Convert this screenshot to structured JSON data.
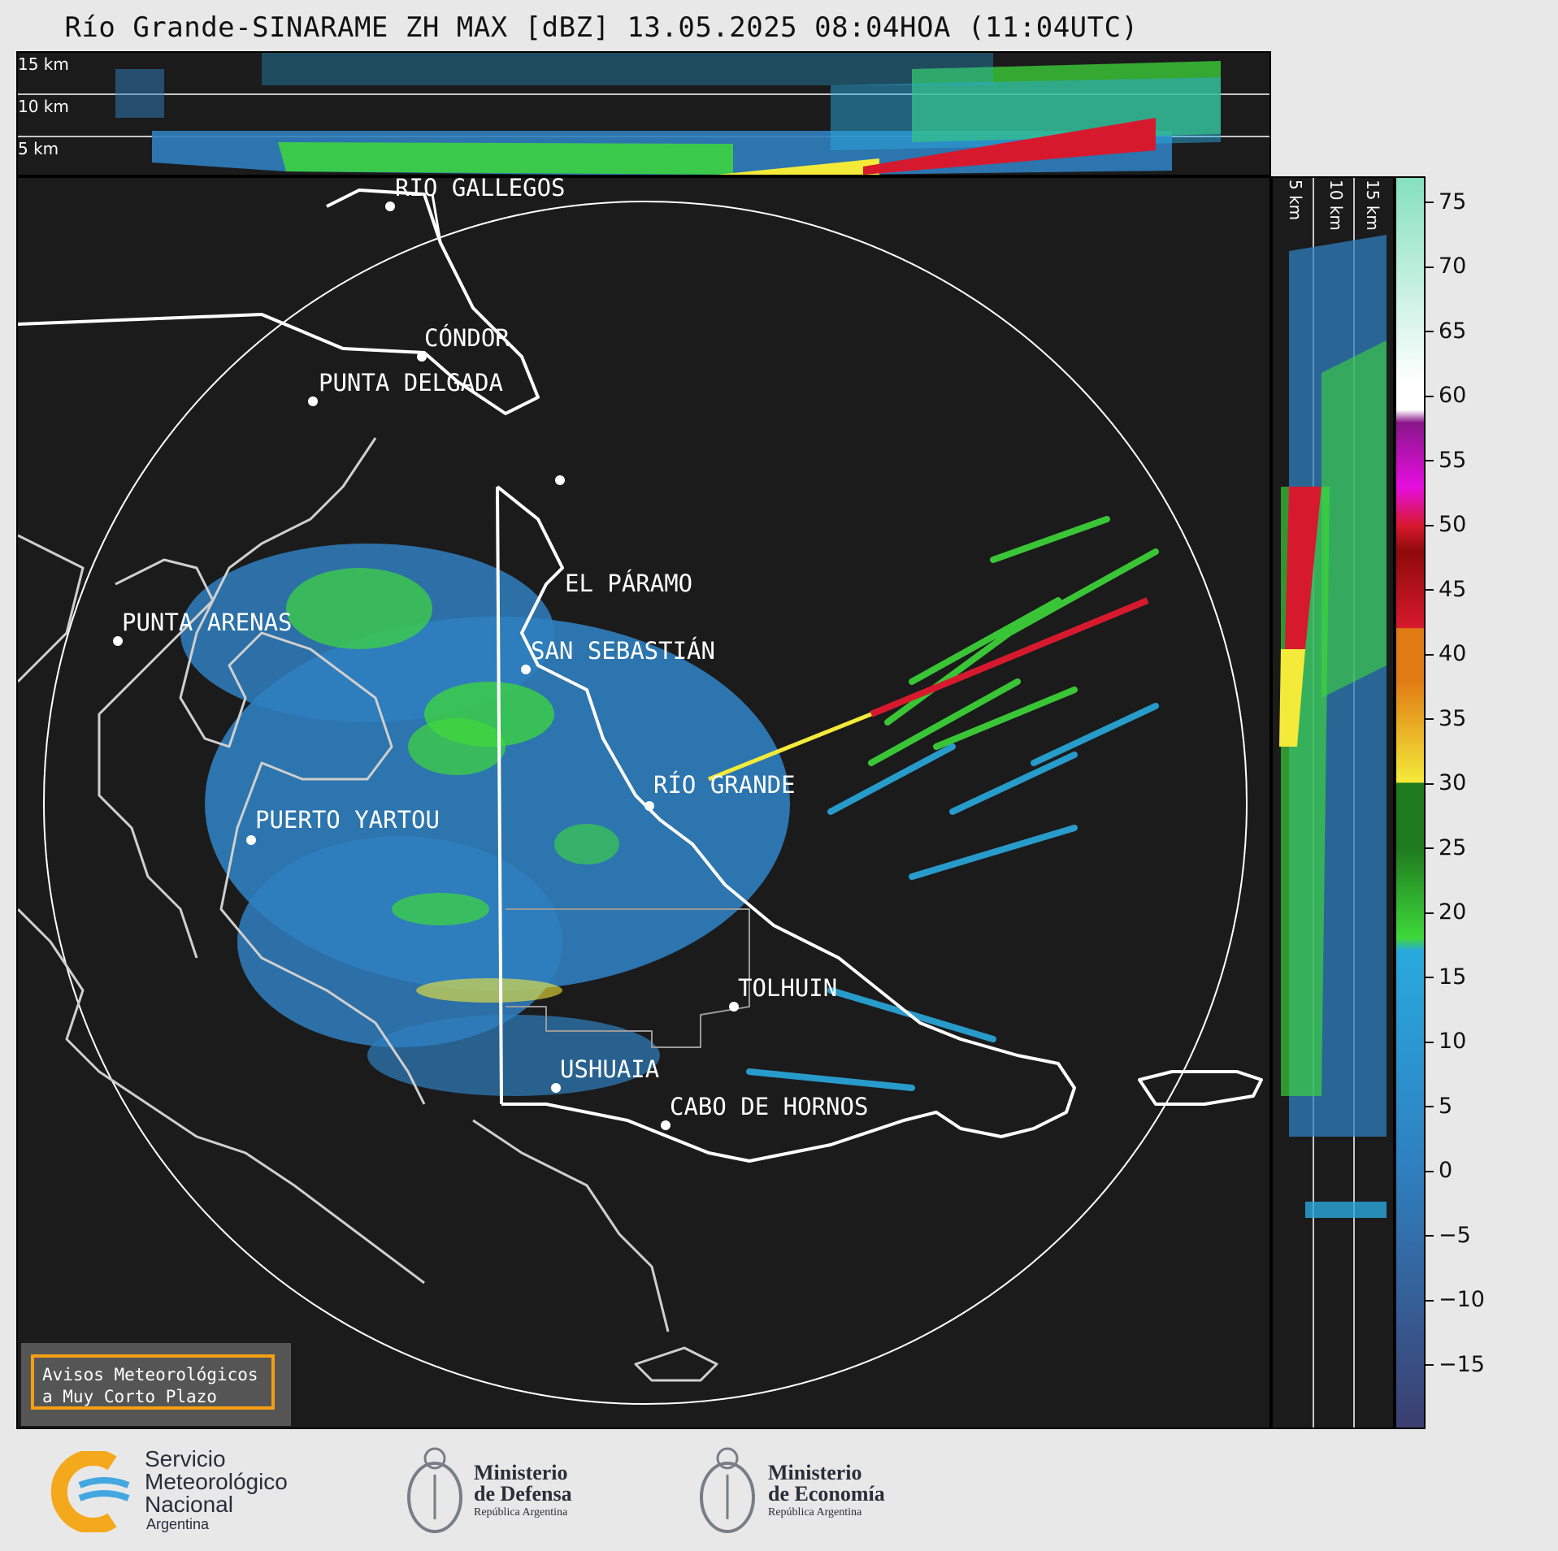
{
  "title": "Río Grande-SINARAME ZH MAX [dBZ] 13.05.2025 08:04HOA (11:04UTC)",
  "top_panel": {
    "height_labels": [
      "15 km",
      "10 km",
      "5 km"
    ]
  },
  "right_panel": {
    "height_labels": [
      "5 km",
      "10 km",
      "15 km"
    ]
  },
  "cities": {
    "rio_gallegos": "RÍO GALLEGOS",
    "condor": "CÓNDOR",
    "punta_delgada": "PUNTA DELGADA",
    "el_paramo": "EL PÁRAMO",
    "punta_arenas": "PUNTA ARENAS",
    "san_sebastian": "SAN SEBASTIÁN",
    "rio_grande": "RÍO GRANDE",
    "puerto_yartou": "PUERTO YARTOU",
    "tolhuin": "TOLHUIN",
    "ushuaia": "USHUAIA",
    "cabo_de_hornos": "CABO DE HORNOS"
  },
  "colorbar": {
    "unit": "dBZ",
    "ticks": [
      "75",
      "70",
      "65",
      "60",
      "55",
      "50",
      "45",
      "40",
      "35",
      "30",
      "25",
      "20",
      "15",
      "10",
      "5",
      "0",
      "−5",
      "−10",
      "−15"
    ],
    "range": [
      -20,
      77
    ],
    "colors": {
      "low": "#3b3f70",
      "mid_blue": "#2f7fbf",
      "light_blue": "#29a9de",
      "green": "#3ed83a",
      "dark_green": "#1f7a1f",
      "yellow": "#f4ea3a",
      "orange": "#e07b14",
      "red": "#d7192e",
      "dark_red": "#8f0a0a",
      "magenta": "#e60ee0",
      "purple": "#8a168a",
      "white": "#ffffff",
      "mint": "#86e0c0"
    }
  },
  "notice": {
    "line1": "Avisos Meteorológicos",
    "line2": "a Muy Corto Plazo"
  },
  "logos": {
    "smn": {
      "line1": "Servicio",
      "line2": "Meteorológico",
      "line3": "Nacional",
      "line4": "Argentina"
    },
    "defensa": {
      "line1": "Ministerio",
      "line2": "de Defensa",
      "line3": "República Argentina"
    },
    "economia": {
      "line1": "Ministerio",
      "line2": "de Economía",
      "line3": "República Argentina"
    }
  }
}
